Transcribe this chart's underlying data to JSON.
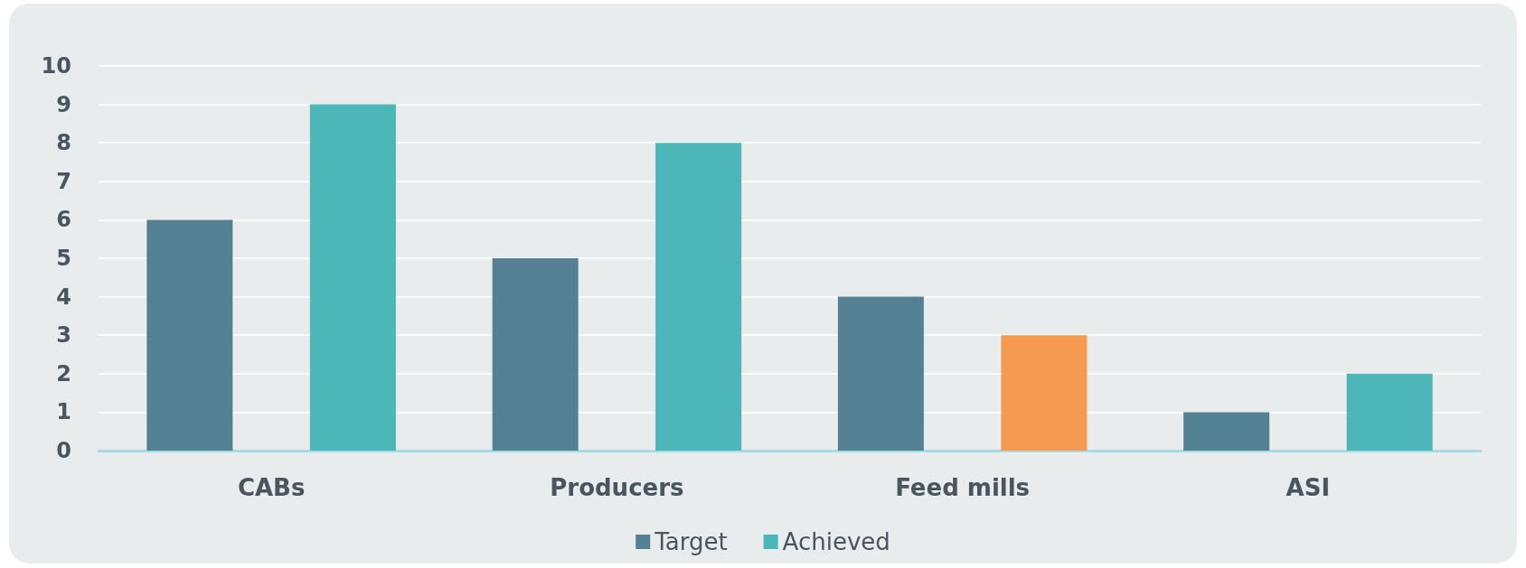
{
  "chart_data": {
    "type": "bar",
    "categories": [
      "CABs",
      "Producers",
      "Feed mills",
      "ASI"
    ],
    "series": [
      {
        "name": "Target",
        "color": "#4b7b8e",
        "values": [
          6,
          5,
          4,
          1
        ]
      },
      {
        "name": "Achieved",
        "color": "#45b3b5",
        "colors": [
          "#45b3b5",
          "#45b3b5",
          "#f7964a",
          "#45b3b5"
        ],
        "values": [
          9,
          8,
          3,
          2
        ]
      }
    ],
    "ylim": [
      0,
      10
    ],
    "yticks": [
      0,
      1,
      2,
      3,
      4,
      5,
      6,
      7,
      8,
      9,
      10
    ],
    "grid": "y",
    "legend": "bottom"
  }
}
